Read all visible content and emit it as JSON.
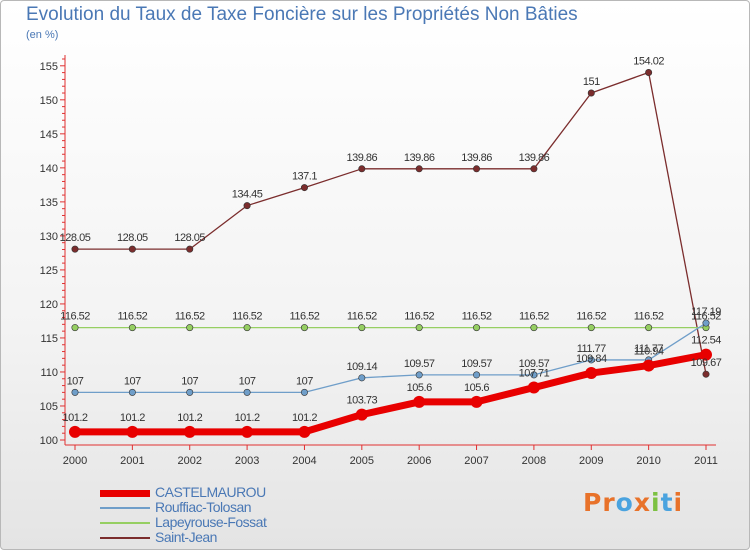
{
  "title": "Evolution du Taux de Taxe Foncière sur les Propriétés Non Bâties",
  "subtitle": "(en %)",
  "logo": {
    "text": "Proxiti",
    "colors": [
      "#e8722a",
      "#e8722a",
      "#4aa3df",
      "#e8722a",
      "#7cc142",
      "#4aa3df",
      "#e8722a"
    ]
  },
  "chart_data": {
    "type": "line",
    "title": "Evolution du Taux de Taxe Foncière sur les Propriétés Non Bâties",
    "ylabel": "(en %)",
    "xlabel": "",
    "categories": [
      "2000",
      "2001",
      "2002",
      "2003",
      "2004",
      "2005",
      "2006",
      "2007",
      "2008",
      "2009",
      "2010",
      "2011"
    ],
    "ylim": [
      100,
      156
    ],
    "yticks": [
      100,
      105,
      110,
      115,
      120,
      125,
      130,
      135,
      140,
      145,
      150,
      155
    ],
    "grid": false,
    "legend": "bottom-left",
    "series": [
      {
        "name": "Saint-Jean",
        "color": "#7b2d2d",
        "values": [
          128.05,
          128.05,
          128.05,
          134.45,
          137.1,
          139.86,
          139.86,
          139.86,
          139.86,
          151,
          154.02,
          109.67
        ],
        "labels": [
          "128.05",
          "128.05",
          "128.05",
          "134.45",
          "137.1",
          "139.86",
          "139.86",
          "139.86",
          "139.86",
          "151",
          "154.02",
          "109.67"
        ]
      },
      {
        "name": "Lapeyrouse-Fossat",
        "color": "#96cf62",
        "values": [
          116.52,
          116.52,
          116.52,
          116.52,
          116.52,
          116.52,
          116.52,
          116.52,
          116.52,
          116.52,
          116.52,
          116.52
        ],
        "labels": [
          "116.52",
          "116.52",
          "116.52",
          "116.52",
          "116.52",
          "116.52",
          "116.52",
          "116.52",
          "116.52",
          "116.52",
          "116.52",
          "116.52"
        ]
      },
      {
        "name": "Rouffiac-Tolosan",
        "color": "#6f9ec9",
        "values": [
          107,
          107,
          107,
          107,
          107,
          109.14,
          109.57,
          109.57,
          109.57,
          111.77,
          111.77,
          117.19
        ],
        "labels": [
          "107",
          "107",
          "107",
          "107",
          "107",
          "109.14",
          "109.57",
          "109.57",
          "109.57",
          "111.77",
          "111.77",
          "117.19"
        ]
      },
      {
        "name": "CASTELMAUROU",
        "color": "#e80000",
        "values": [
          101.2,
          101.2,
          101.2,
          101.2,
          101.2,
          103.73,
          105.6,
          105.6,
          107.71,
          109.84,
          110.94,
          112.54
        ],
        "labels": [
          "101.2",
          "101.2",
          "101.2",
          "101.2",
          "101.2",
          "103.73",
          "105.6",
          "105.6",
          "107.71",
          "109.84",
          "110.94",
          "112.54"
        ]
      }
    ]
  },
  "legend": [
    {
      "label": "CASTELMAUROU",
      "color": "#e80000"
    },
    {
      "label": "Rouffiac-Tolosan",
      "color": "#6f9ec9"
    },
    {
      "label": "Lapeyrouse-Fossat",
      "color": "#96cf62"
    },
    {
      "label": "Saint-Jean",
      "color": "#7b2d2d"
    }
  ]
}
